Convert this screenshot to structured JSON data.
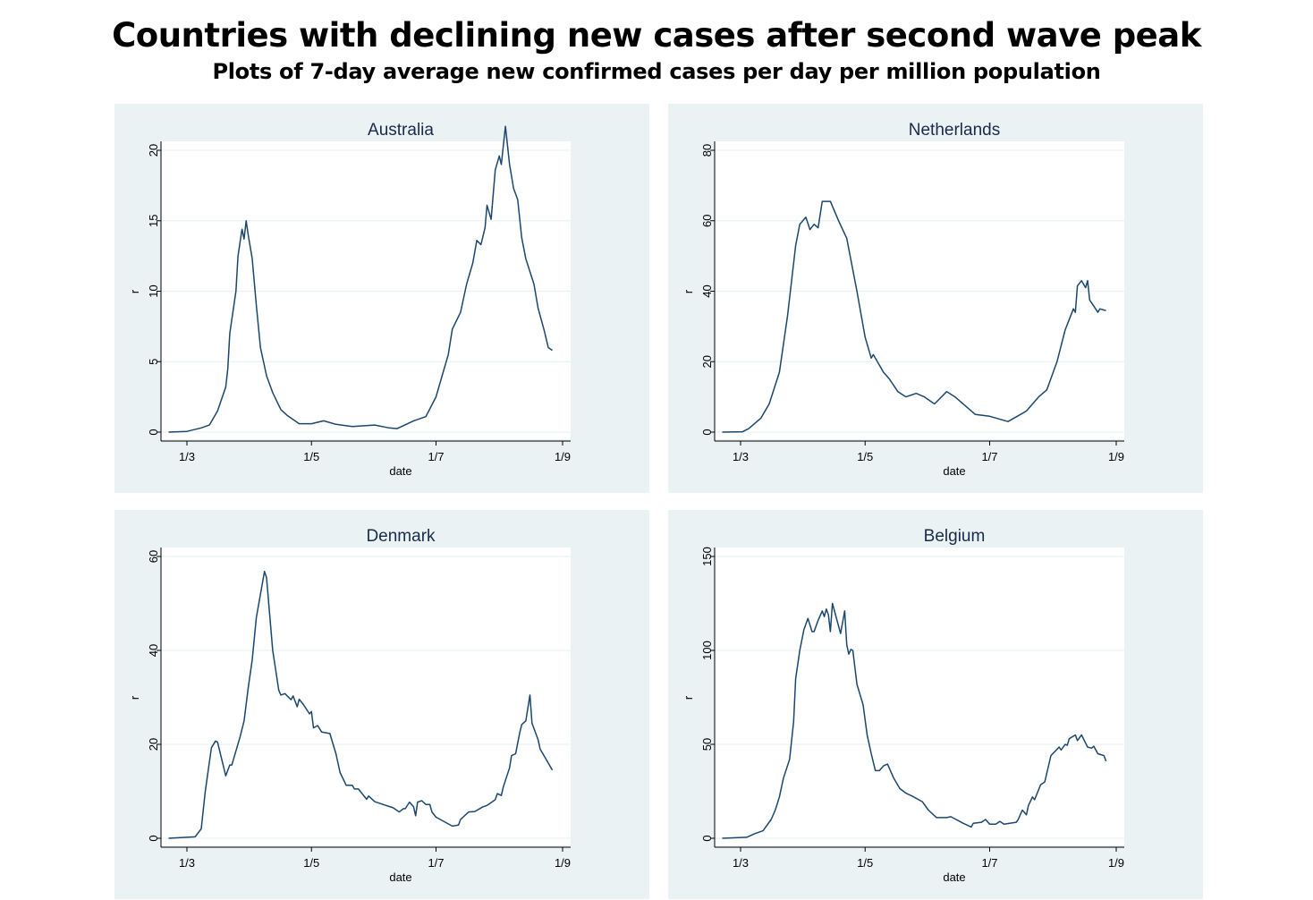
{
  "title": "Countries with declining new cases after second wave peak",
  "subtitle": "Plots of 7-day average new confirmed cases per day per million population",
  "colors": {
    "line": "#1a476f",
    "panel_bg": "#eaf2f3",
    "plot_bg": "#ffffff",
    "grid": "#eaf2f3",
    "text": "#1a2a4a"
  },
  "chart_data": [
    {
      "type": "line",
      "title": "Australia",
      "xlabel": "date",
      "ylabel": "r",
      "xlim": [
        "21/2",
        "1/9"
      ],
      "xticks": [
        "1/3",
        "1/5",
        "1/7",
        "1/9"
      ],
      "ylim": [
        0,
        22
      ],
      "yticks": [
        0,
        5,
        10,
        15,
        20
      ],
      "grid": true,
      "points": [
        [
          "21/2",
          0
        ],
        [
          "1/3",
          0.05
        ],
        [
          "8/3",
          0.3
        ],
        [
          "12/3",
          0.5
        ],
        [
          "16/3",
          1.5
        ],
        [
          "20/3",
          3.2
        ],
        [
          "21/3",
          4.5
        ],
        [
          "22/3",
          7
        ],
        [
          "25/3",
          10
        ],
        [
          "26/3",
          12.5
        ],
        [
          "28/3",
          14.4
        ],
        [
          "29/3",
          13.7
        ],
        [
          "30/3",
          15
        ],
        [
          "31/3",
          14
        ],
        [
          "2/4",
          12.3
        ],
        [
          "4/4",
          9
        ],
        [
          "6/4",
          6
        ],
        [
          "9/4",
          4
        ],
        [
          "12/4",
          2.8
        ],
        [
          "16/4",
          1.6
        ],
        [
          "19/4",
          1.2
        ],
        [
          "25/4",
          0.6
        ],
        [
          "1/5",
          0.6
        ],
        [
          "7/5",
          0.8
        ],
        [
          "13/5",
          0.55
        ],
        [
          "21/5",
          0.4
        ],
        [
          "1/6",
          0.5
        ],
        [
          "8/6",
          0.3
        ],
        [
          "12/6",
          0.25
        ],
        [
          "20/6",
          0.8
        ],
        [
          "26/6",
          1.1
        ],
        [
          "1/7",
          2.5
        ],
        [
          "4/7",
          4
        ],
        [
          "7/7",
          5.5
        ],
        [
          "9/7",
          7.3
        ],
        [
          "13/7",
          8.5
        ],
        [
          "16/7",
          10.5
        ],
        [
          "19/7",
          12
        ],
        [
          "21/7",
          13.6
        ],
        [
          "23/7",
          13.3
        ],
        [
          "25/7",
          14.5
        ],
        [
          "26/7",
          16.1
        ],
        [
          "28/7",
          15.1
        ],
        [
          "30/7",
          18.6
        ],
        [
          "1/8",
          19.6
        ],
        [
          "2/8",
          19
        ],
        [
          "4/8",
          21.7
        ],
        [
          "6/8",
          19
        ],
        [
          "8/8",
          17.3
        ],
        [
          "10/8",
          16.5
        ],
        [
          "12/8",
          13.8
        ],
        [
          "14/8",
          12.3
        ],
        [
          "18/8",
          10.5
        ],
        [
          "20/8",
          8.8
        ],
        [
          "23/8",
          7.2
        ],
        [
          "25/8",
          6
        ],
        [
          "27/8",
          5.8
        ]
      ]
    },
    {
      "type": "line",
      "title": "Netherlands",
      "xlabel": "date",
      "ylabel": "r",
      "xlim": [
        "21/2",
        "1/9"
      ],
      "xticks": [
        "1/3",
        "1/5",
        "1/7",
        "1/9"
      ],
      "ylim": [
        0,
        80
      ],
      "yticks": [
        0,
        20,
        40,
        60,
        80
      ],
      "grid": true,
      "points": [
        [
          "21/2",
          0
        ],
        [
          "2/3",
          0.1
        ],
        [
          "5/3",
          1
        ],
        [
          "11/3",
          4
        ],
        [
          "15/3",
          8
        ],
        [
          "20/3",
          17
        ],
        [
          "24/3",
          33
        ],
        [
          "28/3",
          53
        ],
        [
          "30/3",
          59
        ],
        [
          "2/4",
          61
        ],
        [
          "4/4",
          57.5
        ],
        [
          "6/4",
          59
        ],
        [
          "8/4",
          58
        ],
        [
          "10/4",
          65.5
        ],
        [
          "14/4",
          65.5
        ],
        [
          "18/4",
          60
        ],
        [
          "22/4",
          55
        ],
        [
          "27/4",
          40
        ],
        [
          "1/5",
          27
        ],
        [
          "4/5",
          21
        ],
        [
          "5/5",
          22
        ],
        [
          "10/5",
          17
        ],
        [
          "13/5",
          15
        ],
        [
          "17/5",
          11.5
        ],
        [
          "21/5",
          10
        ],
        [
          "26/5",
          11
        ],
        [
          "30/5",
          10
        ],
        [
          "4/6",
          8
        ],
        [
          "10/6",
          11.5
        ],
        [
          "14/6",
          10
        ],
        [
          "20/6",
          7
        ],
        [
          "24/6",
          5
        ],
        [
          "1/7",
          4.5
        ],
        [
          "10/7",
          3
        ],
        [
          "19/7",
          6
        ],
        [
          "25/7",
          10
        ],
        [
          "29/7",
          12
        ],
        [
          "3/8",
          20
        ],
        [
          "7/8",
          29
        ],
        [
          "11/8",
          35
        ],
        [
          "12/8",
          34
        ],
        [
          "13/8",
          41.5
        ],
        [
          "15/8",
          43
        ],
        [
          "17/8",
          41
        ],
        [
          "18/8",
          43
        ],
        [
          "19/8",
          37.5
        ],
        [
          "23/8",
          34
        ],
        [
          "24/8",
          35
        ],
        [
          "27/8",
          34.5
        ]
      ]
    },
    {
      "type": "line",
      "title": "Denmark",
      "xlabel": "date",
      "ylabel": "r",
      "xlim": [
        "21/2",
        "1/9"
      ],
      "xticks": [
        "1/3",
        "1/5",
        "1/7",
        "1/9"
      ],
      "ylim": [
        0,
        60
      ],
      "yticks": [
        0,
        20,
        40,
        60
      ],
      "grid": true,
      "points": [
        [
          "21/2",
          0
        ],
        [
          "5/3",
          0.3
        ],
        [
          "8/3",
          2
        ],
        [
          "10/3",
          10
        ],
        [
          "13/3",
          19.3
        ],
        [
          "15/3",
          20.7
        ],
        [
          "16/3",
          20.5
        ],
        [
          "20/3",
          13.3
        ],
        [
          "22/3",
          15.6
        ],
        [
          "23/3",
          15.6
        ],
        [
          "27/3",
          21.5
        ],
        [
          "29/3",
          25
        ],
        [
          "31/3",
          32
        ],
        [
          "2/4",
          38
        ],
        [
          "4/4",
          47
        ],
        [
          "8/4",
          56.8
        ],
        [
          "9/4",
          55.5
        ],
        [
          "12/4",
          40
        ],
        [
          "15/4",
          31.5
        ],
        [
          "16/4",
          30.5
        ],
        [
          "18/4",
          30.8
        ],
        [
          "21/4",
          29.5
        ],
        [
          "22/4",
          30.3
        ],
        [
          "24/4",
          28
        ],
        [
          "25/4",
          29.6
        ],
        [
          "27/4",
          28.5
        ],
        [
          "30/4",
          26.5
        ],
        [
          "1/5",
          27
        ],
        [
          "2/5",
          23.5
        ],
        [
          "4/5",
          24
        ],
        [
          "6/5",
          22.6
        ],
        [
          "10/5",
          22.3
        ],
        [
          "13/5",
          18
        ],
        [
          "15/5",
          14
        ],
        [
          "18/5",
          11.3
        ],
        [
          "21/5",
          11.3
        ],
        [
          "22/5",
          10.5
        ],
        [
          "24/5",
          10.5
        ],
        [
          "28/5",
          8.3
        ],
        [
          "29/5",
          9
        ],
        [
          "1/6",
          7.8
        ],
        [
          "5/6",
          7.2
        ],
        [
          "10/6",
          6.5
        ],
        [
          "13/6",
          5.6
        ],
        [
          "15/6",
          6.3
        ],
        [
          "16/6",
          6.3
        ],
        [
          "18/6",
          7.7
        ],
        [
          "20/6",
          6.7
        ],
        [
          "21/6",
          4.8
        ],
        [
          "22/6",
          7.7
        ],
        [
          "24/6",
          8
        ],
        [
          "26/6",
          7.2
        ],
        [
          "28/6",
          7.2
        ],
        [
          "29/6",
          5.6
        ],
        [
          "1/7",
          4.5
        ],
        [
          "4/7",
          3.8
        ],
        [
          "9/7",
          2.6
        ],
        [
          "12/7",
          2.8
        ],
        [
          "13/7",
          4
        ],
        [
          "17/7",
          5.6
        ],
        [
          "20/7",
          5.7
        ],
        [
          "24/7",
          6.7
        ],
        [
          "26/7",
          7
        ],
        [
          "28/7",
          7.6
        ],
        [
          "30/7",
          8.2
        ],
        [
          "31/7",
          9.5
        ],
        [
          "2/8",
          9.1
        ],
        [
          "3/8",
          11
        ],
        [
          "6/8",
          15
        ],
        [
          "7/8",
          17.6
        ],
        [
          "9/8",
          18
        ],
        [
          "11/8",
          22.5
        ],
        [
          "12/8",
          24.2
        ],
        [
          "14/8",
          25
        ],
        [
          "16/8",
          30.5
        ],
        [
          "17/8",
          24.5
        ],
        [
          "20/8",
          21
        ],
        [
          "21/8",
          19
        ],
        [
          "23/8",
          17.5
        ],
        [
          "27/8",
          14.5
        ]
      ]
    },
    {
      "type": "line",
      "title": "Belgium",
      "xlabel": "date",
      "ylabel": "r",
      "xlim": [
        "21/2",
        "1/9"
      ],
      "xticks": [
        "1/3",
        "1/5",
        "1/7",
        "1/9"
      ],
      "ylim": [
        0,
        150
      ],
      "yticks": [
        0,
        50,
        100,
        150
      ],
      "grid": true,
      "points": [
        [
          "21/2",
          0
        ],
        [
          "4/3",
          0.5
        ],
        [
          "8/3",
          2.5
        ],
        [
          "12/3",
          4
        ],
        [
          "16/3",
          10
        ],
        [
          "18/3",
          15
        ],
        [
          "20/3",
          22
        ],
        [
          "22/3",
          32
        ],
        [
          "25/3",
          42
        ],
        [
          "27/3",
          62
        ],
        [
          "28/3",
          85
        ],
        [
          "30/3",
          100
        ],
        [
          "1/4",
          111
        ],
        [
          "3/4",
          117
        ],
        [
          "5/4",
          110
        ],
        [
          "6/4",
          110
        ],
        [
          "8/4",
          116
        ],
        [
          "10/4",
          121
        ],
        [
          "11/4",
          118
        ],
        [
          "12/4",
          122
        ],
        [
          "13/4",
          119
        ],
        [
          "14/4",
          110
        ],
        [
          "15/4",
          125
        ],
        [
          "19/4",
          109
        ],
        [
          "21/4",
          121
        ],
        [
          "22/4",
          103
        ],
        [
          "23/4",
          98
        ],
        [
          "24/4",
          100.5
        ],
        [
          "25/4",
          100
        ],
        [
          "27/4",
          82
        ],
        [
          "30/4",
          71
        ],
        [
          "2/5",
          55
        ],
        [
          "4/5",
          45
        ],
        [
          "6/5",
          36
        ],
        [
          "8/5",
          36
        ],
        [
          "10/5",
          38.5
        ],
        [
          "12/5",
          39.5
        ],
        [
          "15/5",
          32
        ],
        [
          "18/5",
          26.5
        ],
        [
          "21/5",
          24
        ],
        [
          "24/5",
          22.5
        ],
        [
          "29/5",
          19.5
        ],
        [
          "1/6",
          15
        ],
        [
          "5/6",
          11
        ],
        [
          "10/6",
          11
        ],
        [
          "12/6",
          11.5
        ],
        [
          "18/6",
          8
        ],
        [
          "22/6",
          6
        ],
        [
          "23/6",
          8
        ],
        [
          "27/6",
          8.5
        ],
        [
          "29/6",
          10
        ],
        [
          "1/7",
          7.5
        ],
        [
          "4/7",
          7.5
        ],
        [
          "6/7",
          9
        ],
        [
          "8/7",
          7.5
        ],
        [
          "14/7",
          8.5
        ],
        [
          "15/7",
          10
        ],
        [
          "17/7",
          15
        ],
        [
          "19/7",
          12.5
        ],
        [
          "20/7",
          17.5
        ],
        [
          "22/7",
          22
        ],
        [
          "23/7",
          20.5
        ],
        [
          "26/7",
          28.5
        ],
        [
          "28/7",
          30
        ],
        [
          "31/7",
          44
        ],
        [
          "4/8",
          48.5
        ],
        [
          "5/8",
          47
        ],
        [
          "7/8",
          50
        ],
        [
          "8/8",
          49.5
        ],
        [
          "9/8",
          53
        ],
        [
          "12/8",
          55
        ],
        [
          "13/8",
          52
        ],
        [
          "15/8",
          55
        ],
        [
          "18/8",
          48.5
        ],
        [
          "20/8",
          48
        ],
        [
          "21/8",
          49
        ],
        [
          "23/8",
          45
        ],
        [
          "26/8",
          44
        ],
        [
          "27/8",
          41
        ]
      ]
    }
  ]
}
